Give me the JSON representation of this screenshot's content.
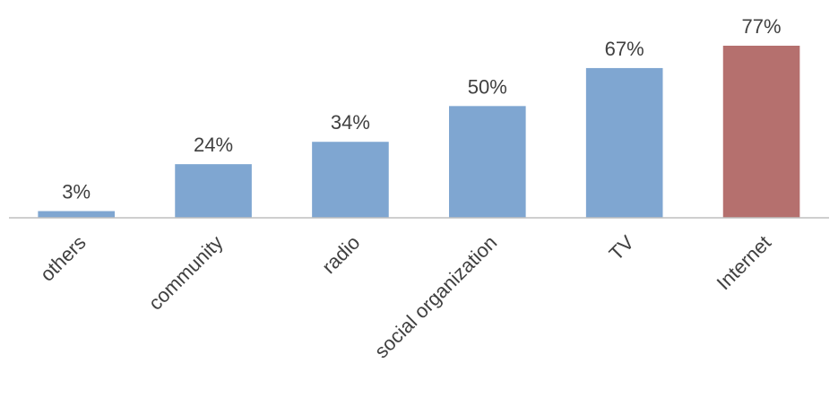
{
  "chart_data": {
    "type": "bar",
    "categories": [
      "others",
      "community",
      "radio",
      "social organization",
      "TV",
      "Internet"
    ],
    "values": [
      3,
      24,
      34,
      50,
      67,
      77
    ],
    "value_labels": [
      "3%",
      "24%",
      "34%",
      "50%",
      "67%",
      "77%"
    ],
    "colors": [
      "#7fa6d1",
      "#7fa6d1",
      "#7fa6d1",
      "#7fa6d1",
      "#7fa6d1",
      "#b5706e"
    ]
  }
}
